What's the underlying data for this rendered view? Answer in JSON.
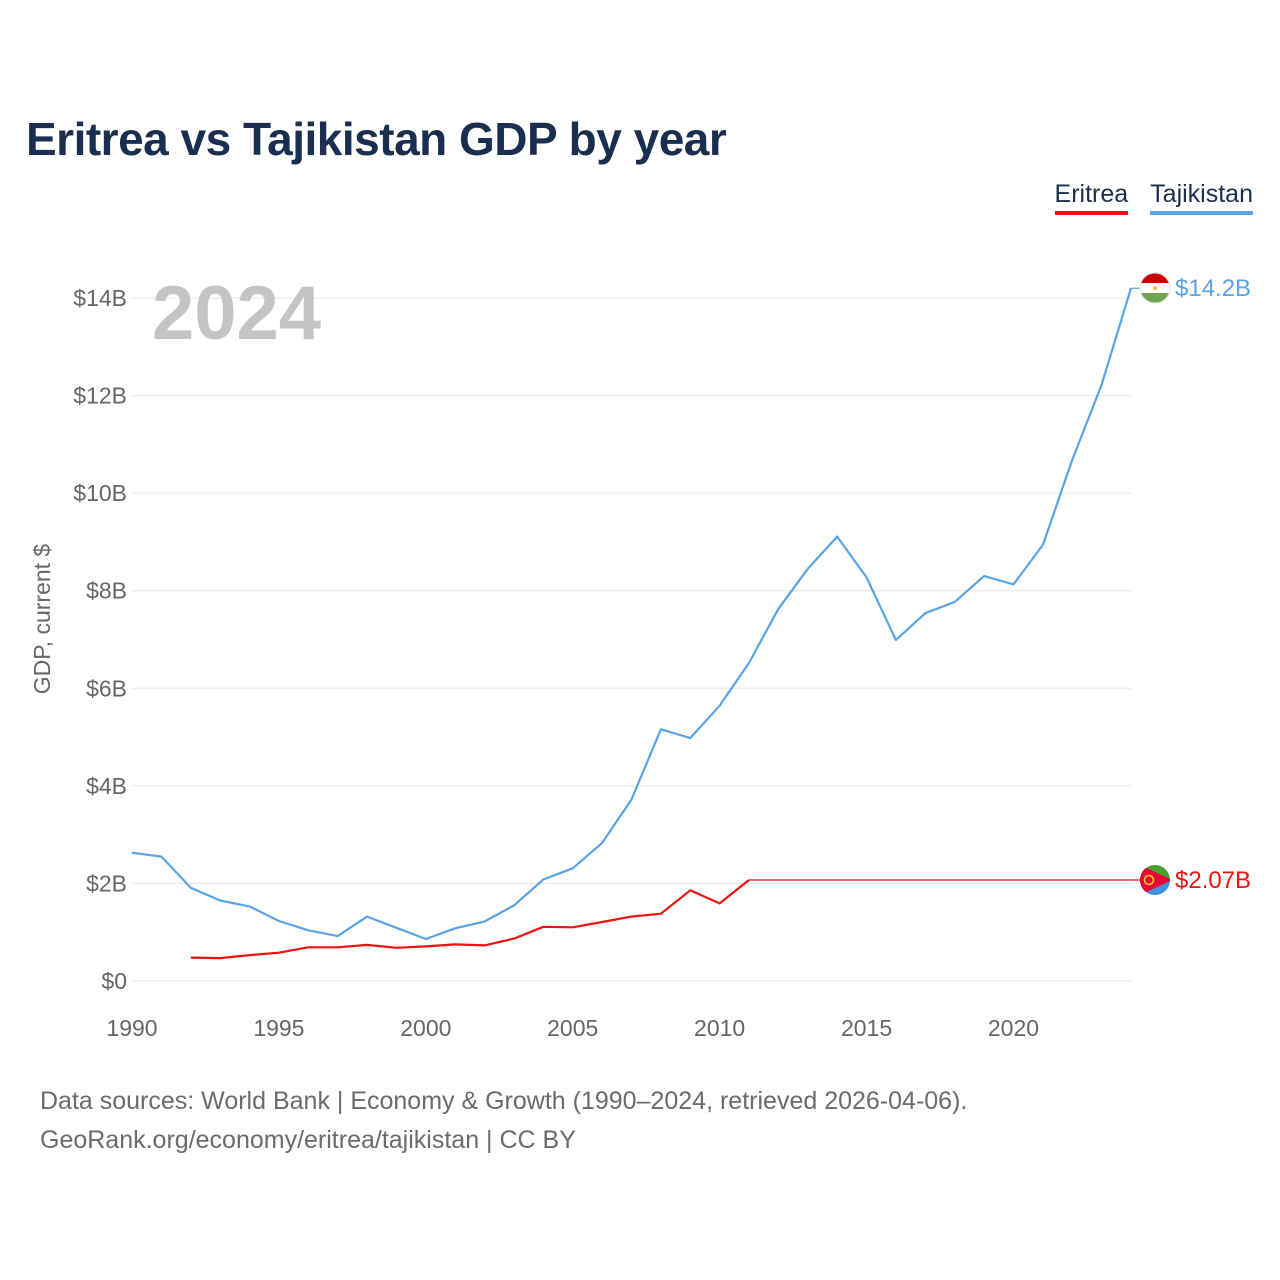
{
  "title": "Eritrea vs Tajikistan GDP by year",
  "legend": [
    {
      "label": "Eritrea",
      "color": "#ee1111"
    },
    {
      "label": "Tajikistan",
      "color": "#5aa3e6"
    }
  ],
  "footer": {
    "line1": "Data sources: World Bank | Economy & Growth (1990–2024, retrieved 2026-04-06).",
    "line2": "GeoRank.org/economy/eritrea/tajikistan | CC BY"
  },
  "chart_data": {
    "type": "line",
    "title": "Eritrea vs Tajikistan GDP by year",
    "ylabel": "GDP, current $",
    "xlabel": "",
    "year_label": "2024",
    "xlim": [
      1990,
      2024
    ],
    "ylim": [
      0,
      14
    ],
    "y_unit": "billions USD",
    "grid": true,
    "legend_position": "top-right",
    "y_ticks": [
      0,
      2,
      4,
      6,
      8,
      10,
      12,
      14
    ],
    "y_tick_labels": [
      "$0",
      "$2B",
      "$4B",
      "$6B",
      "$8B",
      "$10B",
      "$12B",
      "$14B"
    ],
    "x_ticks": [
      1990,
      1995,
      2000,
      2005,
      2010,
      2015,
      2020
    ],
    "x_tick_labels": [
      "1990",
      "1995",
      "2000",
      "2005",
      "2010",
      "2015",
      "2020"
    ],
    "series": [
      {
        "name": "Tajikistan",
        "color": "#5aa3e6",
        "end_label": "$14.2B",
        "x": [
          1990,
          1991,
          1992,
          1993,
          1994,
          1995,
          1996,
          1997,
          1998,
          1999,
          2000,
          2001,
          2002,
          2003,
          2004,
          2005,
          2006,
          2007,
          2008,
          2009,
          2010,
          2011,
          2012,
          2013,
          2014,
          2015,
          2016,
          2017,
          2018,
          2019,
          2020,
          2021,
          2022,
          2023,
          2024
        ],
        "values": [
          2.63,
          2.55,
          1.91,
          1.65,
          1.53,
          1.23,
          1.04,
          0.92,
          1.32,
          1.09,
          0.86,
          1.08,
          1.22,
          1.55,
          2.08,
          2.31,
          2.83,
          3.72,
          5.16,
          4.98,
          5.64,
          6.52,
          7.63,
          8.45,
          9.11,
          8.27,
          6.99,
          7.54,
          7.77,
          8.3,
          8.13,
          8.94,
          10.68,
          12.22,
          14.2
        ]
      },
      {
        "name": "Eritrea",
        "color": "#ee1111",
        "end_label": "$2.07B",
        "x": [
          1992,
          1993,
          1994,
          1995,
          1996,
          1997,
          1998,
          1999,
          2000,
          2001,
          2002,
          2003,
          2004,
          2005,
          2006,
          2007,
          2008,
          2009,
          2010,
          2011
        ],
        "values": [
          0.48,
          0.47,
          0.53,
          0.58,
          0.69,
          0.69,
          0.74,
          0.68,
          0.71,
          0.75,
          0.73,
          0.87,
          1.11,
          1.1,
          1.21,
          1.32,
          1.38,
          1.86,
          1.59,
          2.07
        ],
        "extended_to": 2024
      }
    ]
  }
}
